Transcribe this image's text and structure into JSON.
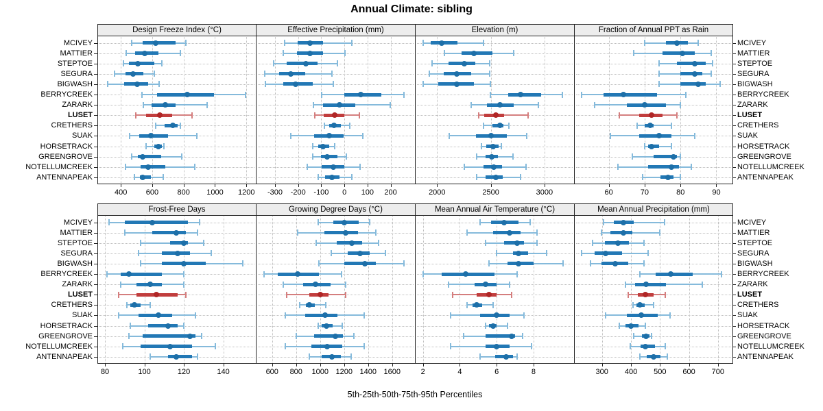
{
  "chart_data": {
    "type": "dotplot",
    "title": "Annual Climate: sibling",
    "xlabel": "5th-25th-50th-75th-95th Percentiles",
    "percentiles": [
      5,
      25,
      50,
      75,
      95
    ],
    "legend_position": "none",
    "grid": "dotted",
    "stations": [
      "MCIVEY",
      "MATTIER",
      "STEPTOE",
      "SEGURA",
      "BIGWASH",
      "BERRYCREEK",
      "ZARARK",
      "LUSET",
      "CRETHERS",
      "SUAK",
      "HORSETRACK",
      "GREENGROVE",
      "NOTELLUMCREEK",
      "ANTENNAPEAK"
    ],
    "highlight_station": "LUSET",
    "colors": {
      "blue_dot": "#1d6fa8",
      "blue_box": "#2278b5",
      "blue_whisker": "#85badb",
      "red_dot": "#b02626",
      "red_box": "#c13d3d",
      "red_whisker": "#d47e7e",
      "strip_bg": "#ededed",
      "panel_border": "#222222",
      "grid": "#bdbdbd"
    },
    "panels": [
      {
        "title": "Design Freeze Index (°C)",
        "row": 0,
        "col": 0,
        "ticks": [
          400,
          600,
          800,
          1000,
          1200
        ],
        "domain": [
          255,
          1260
        ],
        "values": [
          [
            470,
            540,
            620,
            750,
            815
          ],
          [
            435,
            490,
            550,
            640,
            780
          ],
          [
            415,
            450,
            510,
            615,
            660
          ],
          [
            360,
            430,
            480,
            545,
            615
          ],
          [
            315,
            420,
            505,
            575,
            645
          ],
          [
            535,
            630,
            825,
            995,
            1195
          ],
          [
            545,
            595,
            685,
            750,
            950
          ],
          [
            495,
            560,
            650,
            725,
            855
          ],
          [
            620,
            680,
            730,
            760,
            780
          ],
          [
            455,
            515,
            590,
            700,
            885
          ],
          [
            560,
            615,
            640,
            660,
            675
          ],
          [
            470,
            510,
            540,
            655,
            790
          ],
          [
            430,
            525,
            575,
            685,
            870
          ],
          [
            485,
            520,
            540,
            590,
            670
          ]
        ]
      },
      {
        "title": "Effective Precipitation (mm)",
        "row": 0,
        "col": 1,
        "ticks": [
          -300,
          -200,
          -100,
          0,
          100,
          200
        ],
        "domain": [
          -380,
          305
        ],
        "values": [
          [
            -258,
            -201,
            -150,
            -93,
            32
          ],
          [
            -263,
            -204,
            -150,
            -92,
            4
          ],
          [
            -306,
            -251,
            -167,
            -117,
            -31
          ],
          [
            -343,
            -283,
            -232,
            -169,
            -55
          ],
          [
            -341,
            -263,
            -211,
            -138,
            -49
          ],
          [
            -98,
            1,
            71,
            160,
            259
          ],
          [
            -135,
            -92,
            -21,
            47,
            197
          ],
          [
            -127,
            -90,
            -41,
            1,
            65
          ],
          [
            -85,
            -65,
            -44,
            -16,
            24
          ],
          [
            -232,
            -130,
            -65,
            -4,
            80
          ],
          [
            -138,
            -112,
            -92,
            -65,
            -43
          ],
          [
            -138,
            -102,
            -75,
            -31,
            9
          ],
          [
            -161,
            -98,
            -48,
            -1,
            68
          ],
          [
            -113,
            -82,
            -53,
            -21,
            32
          ]
        ]
      },
      {
        "title": "Elevation (m)",
        "row": 0,
        "col": 2,
        "ticks": [
          2000,
          2500,
          3000
        ],
        "domain": [
          1800,
          3275
        ],
        "values": [
          [
            1870,
            1940,
            2040,
            2190,
            2435
          ],
          [
            2070,
            2225,
            2340,
            2515,
            2710
          ],
          [
            1955,
            2105,
            2255,
            2355,
            2490
          ],
          [
            1930,
            2060,
            2180,
            2315,
            2490
          ],
          [
            1870,
            2010,
            2180,
            2340,
            2495
          ],
          [
            2495,
            2660,
            2780,
            2970,
            3165
          ],
          [
            2320,
            2465,
            2585,
            2710,
            2945
          ],
          [
            2385,
            2440,
            2550,
            2625,
            2845
          ],
          [
            2435,
            2515,
            2585,
            2615,
            2670
          ],
          [
            2115,
            2360,
            2500,
            2650,
            2835
          ],
          [
            2415,
            2460,
            2520,
            2570,
            2595
          ],
          [
            2370,
            2450,
            2510,
            2565,
            2705
          ],
          [
            2255,
            2430,
            2530,
            2605,
            2830
          ],
          [
            2370,
            2450,
            2550,
            2610,
            2775
          ]
        ]
      },
      {
        "title": "Fraction of Annual PPT as Rain",
        "row": 0,
        "col": 3,
        "ticks": [
          60,
          70,
          80,
          90
        ],
        "domain": [
          50.5,
          94.5
        ],
        "values": [
          [
            70,
            76,
            79,
            82,
            85
          ],
          [
            67,
            75,
            80.5,
            84,
            88.5
          ],
          [
            74,
            79,
            84,
            87,
            89
          ],
          [
            74,
            80,
            84,
            86,
            88.5
          ],
          [
            74,
            80,
            85,
            87,
            91
          ],
          [
            52.5,
            58.5,
            64,
            73.5,
            81.5
          ],
          [
            56,
            65,
            70,
            76,
            80
          ],
          [
            63,
            68.5,
            72,
            75,
            79
          ],
          [
            68,
            70,
            71.5,
            72.5,
            77.5
          ],
          [
            60.5,
            68.5,
            74,
            77.5,
            84
          ],
          [
            70,
            71,
            72,
            74,
            77.5
          ],
          [
            66.5,
            72.5,
            78,
            79,
            80
          ],
          [
            62.5,
            71,
            77.5,
            79.5,
            83
          ],
          [
            69.5,
            74.5,
            76.5,
            78,
            80
          ]
        ]
      },
      {
        "title": "Frost-Free Days",
        "row": 1,
        "col": 0,
        "ticks": [
          80,
          100,
          120,
          140
        ],
        "domain": [
          76.5,
          156.5
        ],
        "values": [
          [
            82,
            90,
            104,
            122,
            128
          ],
          [
            90,
            104,
            116,
            121,
            127
          ],
          [
            98,
            113,
            120,
            122,
            130
          ],
          [
            97,
            109,
            117,
            123,
            134
          ],
          [
            98,
            109,
            120,
            131,
            150
          ],
          [
            81,
            88,
            92,
            109,
            120
          ],
          [
            88,
            96,
            103,
            109,
            120
          ],
          [
            87,
            96,
            106,
            117,
            121
          ],
          [
            91,
            93,
            95,
            98,
            103
          ],
          [
            87,
            97,
            107,
            114,
            126
          ],
          [
            93,
            102,
            112,
            117,
            120
          ],
          [
            92,
            99,
            123,
            126,
            129
          ],
          [
            89,
            98,
            113,
            124,
            136
          ],
          [
            103,
            112,
            116,
            124,
            127
          ]
        ]
      },
      {
        "title": "Growing Degree Days (°C)",
        "row": 1,
        "col": 1,
        "ticks": [
          600,
          800,
          1000,
          1200,
          1400,
          1600
        ],
        "domain": [
          470,
          1790
        ],
        "values": [
          [
            985,
            1110,
            1200,
            1320,
            1410
          ],
          [
            815,
            1035,
            1210,
            1315,
            1465
          ],
          [
            965,
            1140,
            1265,
            1350,
            1485
          ],
          [
            1090,
            1230,
            1335,
            1415,
            1545
          ],
          [
            990,
            1200,
            1375,
            1465,
            1700
          ],
          [
            535,
            645,
            815,
            990,
            1180
          ],
          [
            690,
            860,
            960,
            1085,
            1215
          ],
          [
            720,
            910,
            1000,
            1070,
            1210
          ],
          [
            830,
            880,
            910,
            955,
            1045
          ],
          [
            710,
            875,
            1040,
            1145,
            1365
          ],
          [
            985,
            1015,
            1055,
            1105,
            1185
          ],
          [
            800,
            950,
            1125,
            1190,
            1280
          ],
          [
            710,
            925,
            1060,
            1185,
            1365
          ],
          [
            910,
            1015,
            1100,
            1170,
            1260
          ]
        ]
      },
      {
        "title": "Mean Annual Air Temperature (°C)",
        "row": 1,
        "col": 2,
        "ticks": [
          2,
          4,
          6,
          8
        ],
        "domain": [
          1.6,
          10.2
        ],
        "values": [
          [
            5.1,
            5.7,
            6.4,
            7.2,
            7.8
          ],
          [
            4.4,
            5.8,
            6.7,
            7.3,
            8.2
          ],
          [
            5.4,
            6.4,
            7.1,
            7.5,
            8.2
          ],
          [
            6.0,
            6.9,
            7.2,
            7.7,
            8.7
          ],
          [
            5.6,
            6.6,
            7.2,
            8.0,
            9.6
          ],
          [
            2.0,
            3.0,
            4.3,
            5.9,
            7.1
          ],
          [
            3.4,
            4.8,
            5.4,
            6.0,
            6.7
          ],
          [
            3.6,
            4.9,
            5.6,
            6.0,
            6.8
          ],
          [
            4.4,
            4.7,
            4.9,
            5.2,
            5.8
          ],
          [
            3.5,
            5.1,
            6.0,
            6.7,
            7.5
          ],
          [
            5.4,
            5.6,
            5.8,
            6.0,
            6.6
          ],
          [
            4.2,
            5.4,
            6.8,
            7.0,
            7.4
          ],
          [
            3.5,
            5.4,
            6.0,
            6.7,
            7.9
          ],
          [
            5.1,
            5.9,
            6.5,
            6.9,
            7.1
          ]
        ]
      },
      {
        "title": "Mean Annual Precipitation (mm)",
        "row": 1,
        "col": 3,
        "ticks": [
          300,
          400,
          500,
          600,
          700
        ],
        "domain": [
          206,
          750
        ],
        "values": [
          [
            305,
            340,
            375,
            410,
            515
          ],
          [
            298,
            330,
            373,
            405,
            500
          ],
          [
            268,
            311,
            355,
            392,
            445
          ],
          [
            230,
            275,
            312,
            370,
            460
          ],
          [
            260,
            298,
            345,
            390,
            445
          ],
          [
            430,
            485,
            537,
            613,
            713
          ],
          [
            380,
            415,
            452,
            520,
            647
          ],
          [
            390,
            424,
            450,
            478,
            518
          ],
          [
            408,
            418,
            430,
            448,
            477
          ],
          [
            313,
            386,
            435,
            492,
            535
          ],
          [
            360,
            381,
            400,
            425,
            450
          ],
          [
            410,
            437,
            453,
            463,
            471
          ],
          [
            398,
            432,
            450,
            482,
            518
          ],
          [
            430,
            454,
            477,
            501,
            525
          ]
        ]
      }
    ]
  }
}
